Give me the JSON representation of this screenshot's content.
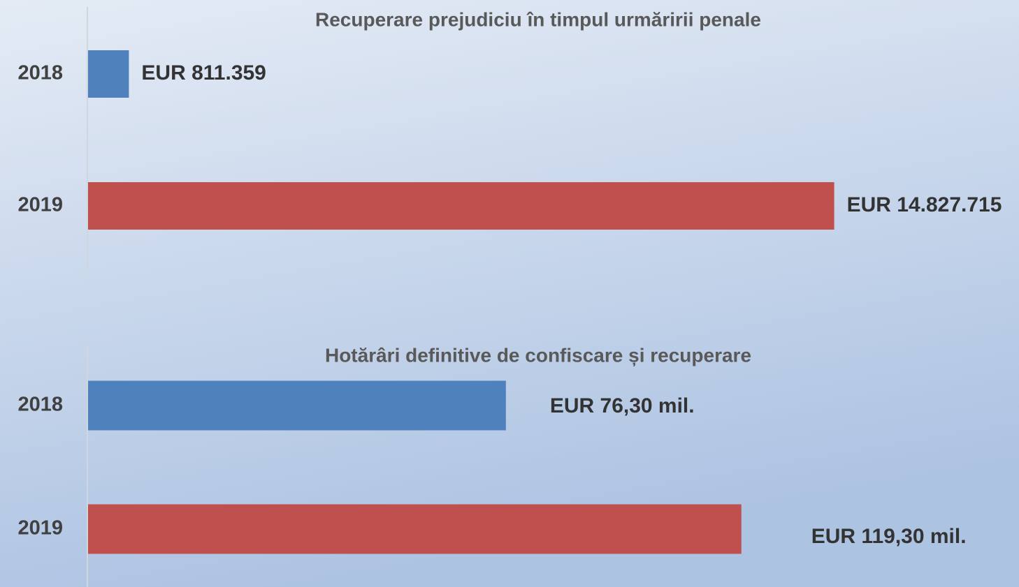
{
  "chart_data": [
    {
      "type": "bar",
      "orientation": "horizontal",
      "title": "Recuperare prejudiciu în timpul urmăririi penale",
      "categories": [
        "2018",
        "2019"
      ],
      "values": [
        811359,
        14827715
      ],
      "value_labels": [
        "EUR 811.359",
        "EUR 14.827.715"
      ],
      "colors": [
        "#4f81bd",
        "#c0504d"
      ],
      "xlim": [
        0,
        18500000
      ]
    },
    {
      "type": "bar",
      "orientation": "horizontal",
      "title": "Hotărâri definitive de confiscare și recuperare",
      "categories": [
        "2018",
        "2019"
      ],
      "values": [
        76.3,
        119.3
      ],
      "value_labels": [
        "EUR 76,30 mil.",
        "EUR 119,30 mil."
      ],
      "colors": [
        "#4f81bd",
        "#c0504d"
      ],
      "xlim": [
        0,
        170
      ]
    }
  ]
}
